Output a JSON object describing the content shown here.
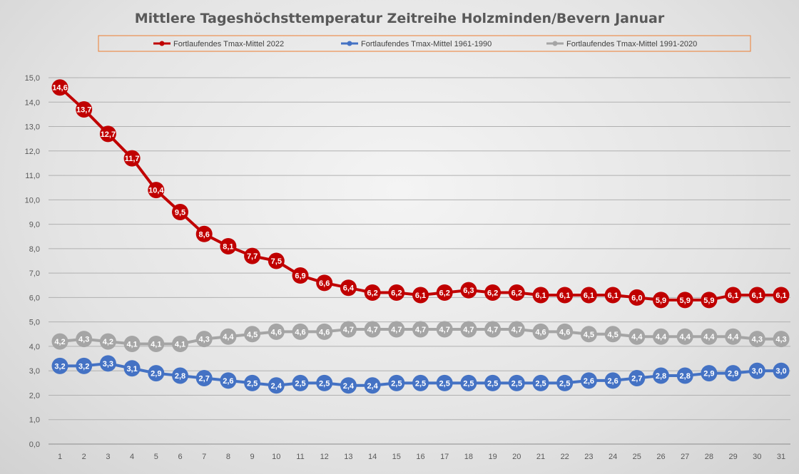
{
  "chart_data": {
    "type": "line",
    "title": "Mittlere Tageshöchsttemperatur Zeitreihe Holzminden/Bevern Januar",
    "xlabel": "",
    "ylabel": "",
    "x": [
      1,
      2,
      3,
      4,
      5,
      6,
      7,
      8,
      9,
      10,
      11,
      12,
      13,
      14,
      15,
      16,
      17,
      18,
      19,
      20,
      21,
      22,
      23,
      24,
      25,
      26,
      27,
      28,
      29,
      30,
      31
    ],
    "ylim": [
      0,
      15
    ],
    "yticks": [
      "0,0",
      "1,0",
      "2,0",
      "3,0",
      "4,0",
      "5,0",
      "6,0",
      "7,0",
      "8,0",
      "9,0",
      "10,0",
      "11,0",
      "12,0",
      "13,0",
      "14,0",
      "15,0"
    ],
    "grid": true,
    "legend_position": "top",
    "series": [
      {
        "name": "Fortlaufendes Tmax-Mittel 2022",
        "color": "#c00000",
        "values": [
          14.6,
          13.7,
          12.7,
          11.7,
          10.4,
          9.5,
          8.6,
          8.1,
          7.7,
          7.5,
          6.9,
          6.6,
          6.4,
          6.2,
          6.2,
          6.1,
          6.2,
          6.3,
          6.2,
          6.2,
          6.1,
          6.1,
          6.1,
          6.1,
          6.0,
          5.9,
          5.9,
          5.9,
          6.1,
          6.1,
          6.1
        ]
      },
      {
        "name": "Fortlaufendes Tmax-Mittel 1961-1990",
        "color": "#4472c4",
        "values": [
          3.2,
          3.2,
          3.3,
          3.1,
          2.9,
          2.8,
          2.7,
          2.6,
          2.5,
          2.4,
          2.5,
          2.5,
          2.4,
          2.4,
          2.5,
          2.5,
          2.5,
          2.5,
          2.5,
          2.5,
          2.5,
          2.5,
          2.6,
          2.6,
          2.7,
          2.8,
          2.8,
          2.9,
          2.9,
          3.0,
          3.0
        ]
      },
      {
        "name": "Fortlaufendes Tmax-Mittel 1991-2020",
        "color": "#a5a5a5",
        "values": [
          4.2,
          4.3,
          4.2,
          4.1,
          4.1,
          4.1,
          4.3,
          4.4,
          4.5,
          4.6,
          4.6,
          4.6,
          4.7,
          4.7,
          4.7,
          4.7,
          4.7,
          4.7,
          4.7,
          4.7,
          4.6,
          4.6,
          4.5,
          4.5,
          4.4,
          4.4,
          4.4,
          4.4,
          4.4,
          4.3,
          4.3
        ]
      }
    ]
  }
}
